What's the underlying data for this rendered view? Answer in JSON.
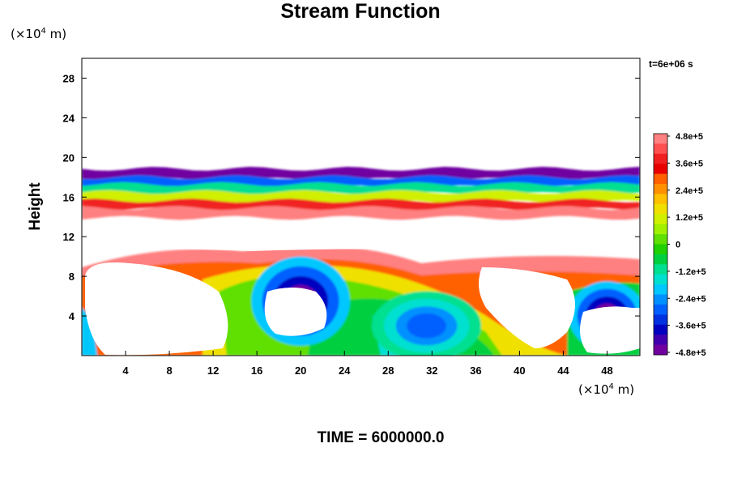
{
  "title": "Stream Function",
  "y_unit": "(×10",
  "x_unit": "(×10",
  "unit_exp": "4",
  "unit_tail": " m)",
  "time_stamp": "t=6e+06 s",
  "time_label": "TIME = 6000000.0",
  "chart_data": {
    "type": "heatmap",
    "title": "Stream Function",
    "ylabel": "Height",
    "xlabel": "",
    "x_unit_scale": "×10^4 m",
    "y_unit_scale": "×10^4 m",
    "xlim": [
      0,
      51
    ],
    "ylim": [
      0,
      30
    ],
    "x_ticks": [
      "4",
      "8",
      "12",
      "16",
      "20",
      "24",
      "28",
      "32",
      "36",
      "40",
      "44",
      "48"
    ],
    "x_tick_values": [
      4,
      8,
      12,
      16,
      20,
      24,
      28,
      32,
      36,
      40,
      44,
      48
    ],
    "y_ticks": [
      "4",
      "8",
      "12",
      "16",
      "20",
      "24",
      "28"
    ],
    "y_tick_values": [
      4,
      8,
      12,
      16,
      20,
      24,
      28
    ],
    "colorbar": {
      "min": -480000,
      "max": 480000,
      "labels": [
        "4.8e+5",
        "3.6e+5",
        "2.4e+5",
        "1.2e+5",
        "0",
        "-1.2e+5",
        "-2.4e+5",
        "-3.6e+5",
        "-4.8e+5"
      ],
      "label_values": [
        480000,
        360000,
        240000,
        120000,
        0,
        -120000,
        -240000,
        -360000,
        -480000
      ],
      "colors": [
        "#ff8080",
        "#ff5050",
        "#f02020",
        "#e80000",
        "#ff6000",
        "#ff9000",
        "#ffc000",
        "#f0e000",
        "#d0f000",
        "#a0f000",
        "#60e000",
        "#20d000",
        "#00d040",
        "#00e090",
        "#00e0d0",
        "#00c8ff",
        "#0090ff",
        "#0060ff",
        "#0030e0",
        "#0000c0",
        "#4000b0",
        "#7000a0"
      ]
    },
    "features": [
      {
        "kind": "band",
        "y_center": 18.3,
        "thickness": 1.1,
        "value": -480000
      },
      {
        "kind": "band",
        "y_center": 17.5,
        "thickness": 1.0,
        "value": -300000
      },
      {
        "kind": "band",
        "y_center": 16.8,
        "thickness": 1.0,
        "value": -100000
      },
      {
        "kind": "band",
        "y_center": 16.0,
        "thickness": 1.0,
        "value": 100000
      },
      {
        "kind": "band",
        "y_center": 15.2,
        "thickness": 0.9,
        "value": 380000
      },
      {
        "kind": "band",
        "y_center": 14.4,
        "thickness": 1.0,
        "value": 480000
      },
      {
        "kind": "blob",
        "cx": 20,
        "cy": 5.5,
        "rx": 4.5,
        "ry": 4.5,
        "value": -480000
      },
      {
        "kind": "blob",
        "cx": 31.5,
        "cy": 3.0,
        "rx": 5,
        "ry": 3.5,
        "value": -300000
      },
      {
        "kind": "blob",
        "cx": 48,
        "cy": 4.0,
        "rx": 3.5,
        "ry": 3.5,
        "value": -480000
      }
    ]
  }
}
